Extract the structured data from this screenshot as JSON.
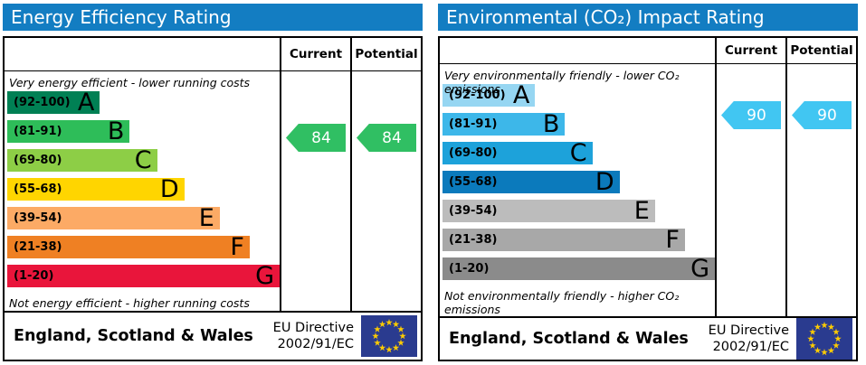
{
  "panels": [
    {
      "title": "Energy Efficiency Rating",
      "header_color": "#137dc2",
      "columns": {
        "current": "Current",
        "potential": "Potential"
      },
      "top_caption": "Very energy efficient - lower running costs",
      "bottom_caption": "Not energy efficient - higher running costs",
      "bands": [
        {
          "range": "(92-100)",
          "letter": "A",
          "color": "#008054",
          "width_pct": 34
        },
        {
          "range": "(81-91)",
          "letter": "B",
          "color": "#2ebd59",
          "width_pct": 45
        },
        {
          "range": "(69-80)",
          "letter": "C",
          "color": "#8dce46",
          "width_pct": 55
        },
        {
          "range": "(55-68)",
          "letter": "D",
          "color": "#ffd500",
          "width_pct": 65
        },
        {
          "range": "(39-54)",
          "letter": "E",
          "color": "#fcaa65",
          "width_pct": 78
        },
        {
          "range": "(21-38)",
          "letter": "F",
          "color": "#ef8023",
          "width_pct": 89
        },
        {
          "range": "(1-20)",
          "letter": "G",
          "color": "#e9153b",
          "width_pct": 100
        }
      ],
      "current": {
        "value": "84",
        "color": "#30bf63"
      },
      "potential": {
        "value": "84",
        "color": "#30bf63"
      },
      "footer": {
        "region": "England, Scotland & Wales",
        "directive_line1": "EU Directive",
        "directive_line2": "2002/91/EC"
      }
    },
    {
      "title": "Environmental (CO₂) Impact Rating",
      "header_color": "#137dc2",
      "columns": {
        "current": "Current",
        "potential": "Potential"
      },
      "top_caption": "Very environmentally friendly - lower CO₂ emissions",
      "bottom_caption": "Not environmentally friendly - higher CO₂ emissions",
      "bands": [
        {
          "range": "(92-100)",
          "letter": "A",
          "color": "#96d6f2",
          "width_pct": 34
        },
        {
          "range": "(81-91)",
          "letter": "B",
          "color": "#3db7e9",
          "width_pct": 45
        },
        {
          "range": "(69-80)",
          "letter": "C",
          "color": "#1da2da",
          "width_pct": 55
        },
        {
          "range": "(55-68)",
          "letter": "D",
          "color": "#0b7abc",
          "width_pct": 65
        },
        {
          "range": "(39-54)",
          "letter": "E",
          "color": "#bcbcbc",
          "width_pct": 78
        },
        {
          "range": "(21-38)",
          "letter": "F",
          "color": "#a8a8a8",
          "width_pct": 89
        },
        {
          "range": "(1-20)",
          "letter": "G",
          "color": "#8b8b8b",
          "width_pct": 100
        }
      ],
      "current": {
        "value": "90",
        "color": "#41c6f2"
      },
      "potential": {
        "value": "90",
        "color": "#41c6f2"
      },
      "footer": {
        "region": "England, Scotland & Wales",
        "directive_line1": "EU Directive",
        "directive_line2": "2002/91/EC"
      }
    }
  ],
  "flag_colors": {
    "field": "#2a3b8f",
    "stars": "#ffcc00"
  },
  "chart_data": [
    {
      "type": "bar",
      "title": "Energy Efficiency Rating",
      "categories": [
        "A (92-100)",
        "B (81-91)",
        "C (69-80)",
        "D (55-68)",
        "E (39-54)",
        "F (21-38)",
        "G (1-20)"
      ],
      "band_widths_pct": [
        34,
        45,
        55,
        65,
        78,
        89,
        100
      ],
      "series": [
        {
          "name": "Current",
          "values": [
            84
          ],
          "band": "B"
        },
        {
          "name": "Potential",
          "values": [
            84
          ],
          "band": "B"
        }
      ],
      "xlabel": "",
      "ylabel": "",
      "xlim": [
        1,
        100
      ],
      "annotations": [
        "Very energy efficient - lower running costs",
        "Not energy efficient - higher running costs"
      ]
    },
    {
      "type": "bar",
      "title": "Environmental (CO₂) Impact Rating",
      "categories": [
        "A (92-100)",
        "B (81-91)",
        "C (69-80)",
        "D (55-68)",
        "E (39-54)",
        "F (21-38)",
        "G (1-20)"
      ],
      "band_widths_pct": [
        34,
        45,
        55,
        65,
        78,
        89,
        100
      ],
      "series": [
        {
          "name": "Current",
          "values": [
            90
          ],
          "band": "B"
        },
        {
          "name": "Potential",
          "values": [
            90
          ],
          "band": "B"
        }
      ],
      "xlabel": "",
      "ylabel": "",
      "xlim": [
        1,
        100
      ],
      "annotations": [
        "Very environmentally friendly - lower CO₂ emissions",
        "Not environmentally friendly - higher CO₂ emissions"
      ]
    }
  ]
}
